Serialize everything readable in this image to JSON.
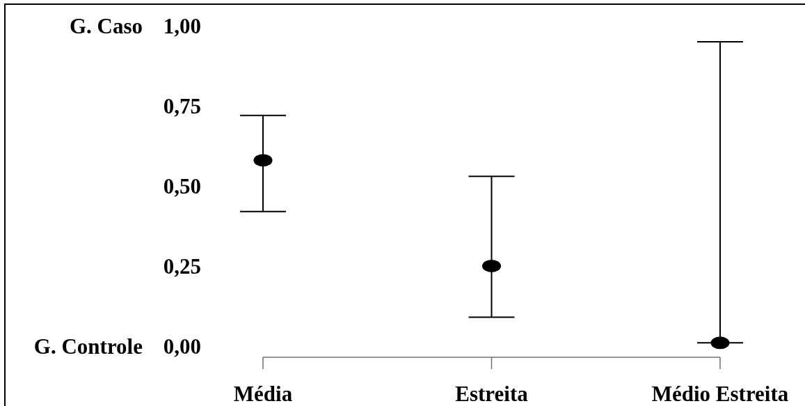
{
  "chart_data": {
    "type": "scatter",
    "categories": [
      "Média",
      "Estreita",
      "Médio Estreita"
    ],
    "series": [
      {
        "color": "#000000",
        "values": [
          0.58,
          0.25,
          0.01
        ],
        "errors": [
          [
            0.42,
            0.72
          ],
          [
            0.09,
            0.53
          ],
          [
            0.01,
            0.95
          ]
        ]
      }
    ],
    "ylim": [
      -0.035,
      1
    ],
    "yticks": [
      {
        "value": 0,
        "label": "0,00"
      },
      {
        "value": 0.25,
        "label": "0,25"
      },
      {
        "value": 0.5,
        "label": "0,50"
      },
      {
        "value": 0.75,
        "label": "0,75"
      },
      {
        "value": 1,
        "label": "1,00"
      }
    ],
    "marker": "circle",
    "annotations": [
      "G. Caso",
      "G. Controle"
    ]
  }
}
